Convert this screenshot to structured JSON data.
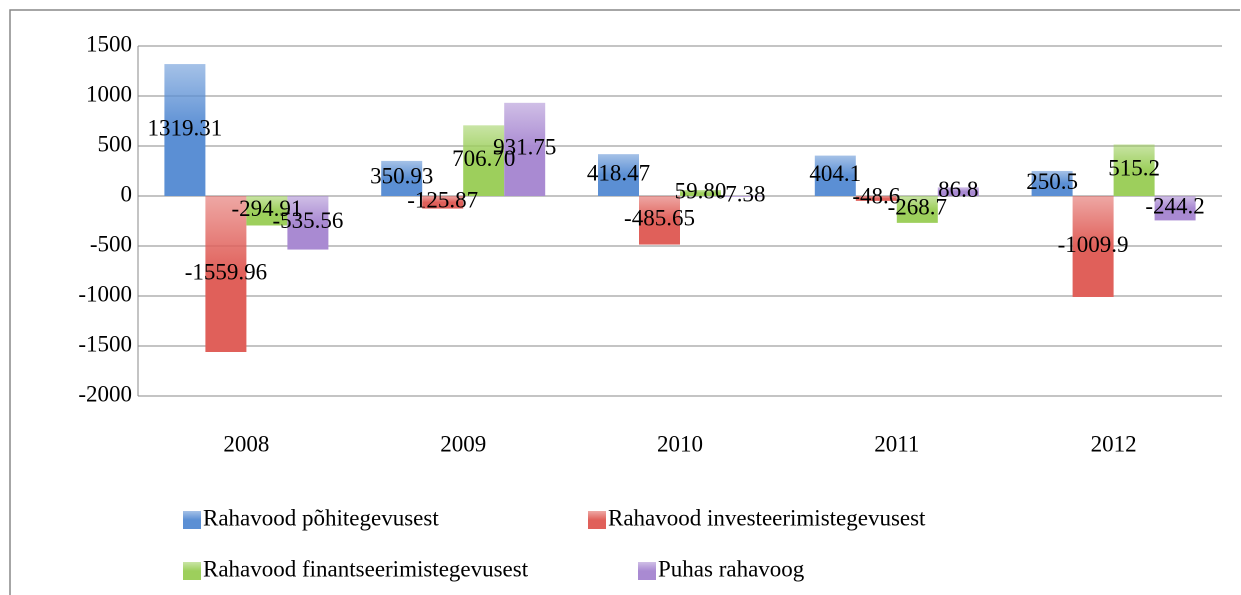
{
  "chart_data": {
    "type": "bar",
    "categories": [
      "2008",
      "2009",
      "2010",
      "2011",
      "2012"
    ],
    "series": [
      {
        "name": "Rahavood põhitegevusest",
        "color": "#5b8fd4",
        "values": [
          1319.31,
          350.93,
          418.47,
          404.1,
          250.5
        ],
        "value_labels": [
          "1319.31",
          "350.93",
          "418.47",
          "404.1",
          "250.5"
        ]
      },
      {
        "name": "Rahavood investeerimistegevusest",
        "color": "#e0605a",
        "values": [
          -1559.96,
          -125.87,
          -485.65,
          -48.6,
          -1009.9
        ],
        "value_labels": [
          "-1559.96",
          "-125.87",
          "-485.65",
          "-48.6",
          "-1009.9"
        ]
      },
      {
        "name": "Rahavood finantseerimistegevusest",
        "color": "#9dcf5c",
        "values": [
          -294.91,
          706.7,
          59.8,
          -268.7,
          515.2
        ],
        "value_labels": [
          "-294.91",
          "706.70",
          "59.80",
          "-268.7",
          "515.2"
        ]
      },
      {
        "name": "Puhas rahavoog",
        "color": "#a98ad2",
        "values": [
          -535.56,
          931.75,
          -7.38,
          86.8,
          -244.2
        ],
        "value_labels": [
          "-535.56",
          "931.75",
          "-7.38",
          "86.8",
          "-244.2"
        ]
      }
    ],
    "ylim": [
      -2000,
      1500
    ],
    "yticks": [
      -2000,
      -1500,
      -1000,
      -500,
      0,
      500,
      1000,
      1500
    ],
    "grid": true
  }
}
